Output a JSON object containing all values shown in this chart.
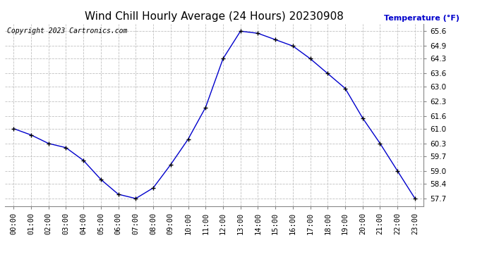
{
  "title": "Wind Chill Hourly Average (24 Hours) 20230908",
  "copyright": "Copyright 2023 Cartronics.com",
  "ylabel": "Temperature (°F)",
  "hours": [
    "00:00",
    "01:00",
    "02:00",
    "03:00",
    "04:00",
    "05:00",
    "06:00",
    "07:00",
    "08:00",
    "09:00",
    "10:00",
    "11:00",
    "12:00",
    "13:00",
    "14:00",
    "15:00",
    "16:00",
    "17:00",
    "18:00",
    "19:00",
    "20:00",
    "21:00",
    "22:00",
    "23:00"
  ],
  "values": [
    61.0,
    60.7,
    60.3,
    60.1,
    59.5,
    58.6,
    57.9,
    57.7,
    58.2,
    59.3,
    60.5,
    62.0,
    64.3,
    65.6,
    65.5,
    65.2,
    64.9,
    64.3,
    63.6,
    62.9,
    61.5,
    60.3,
    59.0,
    57.7
  ],
  "ylim_min": 57.35,
  "ylim_max": 65.95,
  "yticks": [
    57.7,
    58.4,
    59.0,
    59.7,
    60.3,
    61.0,
    61.6,
    62.3,
    63.0,
    63.6,
    64.3,
    64.9,
    65.6
  ],
  "line_color": "#0000cc",
  "marker": "+",
  "marker_color": "#000000",
  "grid_color": "#c0c0c0",
  "bg_color": "#ffffff",
  "title_fontsize": 11,
  "tick_fontsize": 7.5,
  "copyright_fontsize": 7,
  "ylabel_fontsize": 8,
  "ylabel_color": "#0000cc"
}
